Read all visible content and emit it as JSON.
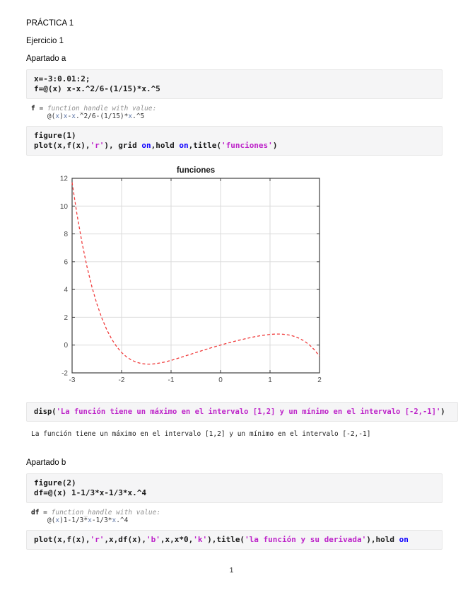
{
  "document": {
    "title": "PRÁCTICA 1",
    "subtitle": "Ejercicio 1",
    "section_a": "Apartado a",
    "section_b": "Apartado b",
    "page_number": "1"
  },
  "colors": {
    "code_background": "#f5f5f6",
    "code_border": "#e7e7e7",
    "code_text": "#1a1a1a",
    "string_purple": "#bd24c9",
    "keyword_blue": "#0e00ff",
    "output_gray_italic": "#909090",
    "plot_line_red": "#f03c3c",
    "axis_dark_gray": "#3f3f3f",
    "grid_light_gray": "#dbdbdb"
  },
  "blocks": [
    {
      "kind": "code",
      "lines": [
        [
          {
            "t": "x=-3:0.01:2;",
            "c": "c"
          }
        ],
        [
          {
            "t": "f=@(x) x-x.^2/6-(1/15)*x.^5",
            "c": "c"
          }
        ]
      ]
    },
    {
      "kind": "output",
      "lines": [
        [
          {
            "t": "f",
            "c": "ob"
          },
          {
            "t": " = ",
            "c": "o"
          },
          {
            "t": "function_handle with value:",
            "c": "g"
          }
        ],
        [
          {
            "t": "    @(",
            "c": "o"
          },
          {
            "t": "x",
            "c": "ox"
          },
          {
            "t": ")",
            "c": "o"
          },
          {
            "t": "x",
            "c": "ox"
          },
          {
            "t": "-",
            "c": "o"
          },
          {
            "t": "x",
            "c": "ox"
          },
          {
            "t": ".^2/6-(1/15)*",
            "c": "o"
          },
          {
            "t": "x",
            "c": "ox"
          },
          {
            "t": ".^5",
            "c": "o"
          }
        ]
      ]
    },
    {
      "kind": "code",
      "lines": [
        [
          {
            "t": "figure(1)",
            "c": "c"
          }
        ],
        [
          {
            "t": "plot(x,f(x),",
            "c": "c"
          },
          {
            "t": "'r'",
            "c": "s"
          },
          {
            "t": "), grid ",
            "c": "c"
          },
          {
            "t": "on",
            "c": "kw"
          },
          {
            "t": ",hold ",
            "c": "c"
          },
          {
            "t": "on",
            "c": "kw"
          },
          {
            "t": ",title(",
            "c": "c"
          },
          {
            "t": "'funciones'",
            "c": "s"
          },
          {
            "t": ")",
            "c": "c"
          }
        ]
      ]
    },
    {
      "kind": "code",
      "lines": [
        [
          {
            "t": "disp(",
            "c": "c"
          },
          {
            "t": "'La función tiene un máximo en el intervalo [1,2] y un mínimo en el intervalo [-2,-1]'",
            "c": "s"
          },
          {
            "t": ")",
            "c": "c"
          }
        ]
      ]
    },
    {
      "kind": "output",
      "lines": [
        [
          {
            "t": "La función tiene un máximo en el intervalo [1,2] y un mínimo en el intervalo [-2,-1]",
            "c": "o2"
          }
        ]
      ]
    },
    {
      "kind": "code",
      "lines": [
        [
          {
            "t": "figure(2)",
            "c": "c"
          }
        ],
        [
          {
            "t": "df=@(x) 1-1/3*x-1/3*x.^4",
            "c": "c"
          }
        ]
      ]
    },
    {
      "kind": "output",
      "lines": [
        [
          {
            "t": "df",
            "c": "ob"
          },
          {
            "t": " = ",
            "c": "o"
          },
          {
            "t": "function_handle with value:",
            "c": "g"
          }
        ],
        [
          {
            "t": "    @(",
            "c": "o"
          },
          {
            "t": "x",
            "c": "ox"
          },
          {
            "t": ")1-1/3*",
            "c": "o"
          },
          {
            "t": "x",
            "c": "ox"
          },
          {
            "t": "-1/3*",
            "c": "o"
          },
          {
            "t": "x",
            "c": "ox"
          },
          {
            "t": ".^4",
            "c": "o"
          }
        ]
      ]
    },
    {
      "kind": "code",
      "lines": [
        [
          {
            "t": "plot(x,f(x),",
            "c": "c"
          },
          {
            "t": "'r'",
            "c": "s"
          },
          {
            "t": ",x,df(x),",
            "c": "c"
          },
          {
            "t": "'b'",
            "c": "s"
          },
          {
            "t": ",x,x*0,",
            "c": "c"
          },
          {
            "t": "'k'",
            "c": "s"
          },
          {
            "t": "),title(",
            "c": "c"
          },
          {
            "t": "'la función y su derivada'",
            "c": "s"
          },
          {
            "t": "),hold ",
            "c": "c"
          },
          {
            "t": "on",
            "c": "kw"
          }
        ]
      ]
    }
  ],
  "chart_data": {
    "type": "line",
    "title": "funciones",
    "xlabel": "",
    "ylabel": "",
    "xlim": [
      -3,
      2
    ],
    "ylim": [
      -2,
      12
    ],
    "xticks": [
      -3,
      -2,
      -1,
      0,
      1,
      2
    ],
    "yticks": [
      -2,
      0,
      2,
      4,
      6,
      8,
      10,
      12
    ],
    "grid": true,
    "legend": null,
    "series": [
      {
        "name": "f(x) = x - x.^2/6 - (1/15)*x.^5",
        "color": "#f03c3c",
        "style": "dashed",
        "x": [
          -3,
          -2.9,
          -2.8,
          -2.7,
          -2.6,
          -2.5,
          -2.4,
          -2.3,
          -2.2,
          -2.1,
          -2,
          -1.9,
          -1.8,
          -1.7,
          -1.6,
          -1.5,
          -1.4,
          -1.3,
          -1.2,
          -1.1,
          -1,
          -0.9,
          -0.8,
          -0.7,
          -0.6,
          -0.5,
          -0.4,
          -0.3,
          -0.2,
          -0.1,
          0,
          0.1,
          0.2,
          0.3,
          0.4,
          0.5,
          0.6,
          0.7,
          0.8,
          0.9,
          1,
          1.1,
          1.2,
          1.3,
          1.4,
          1.5,
          1.6,
          1.7,
          1.8,
          1.9,
          2
        ],
        "y": [
          11.7,
          9.372,
          7.367,
          5.651,
          4.194,
          2.969,
          1.948,
          1.109,
          0.429,
          -0.112,
          -0.533,
          -0.851,
          -1.08,
          -1.235,
          -1.328,
          -1.369,
          -1.368,
          -1.334,
          -1.274,
          -1.194,
          -1.1,
          -0.996,
          -0.885,
          -0.77,
          -0.655,
          -0.54,
          -0.426,
          -0.315,
          -0.207,
          -0.102,
          0,
          0.098,
          0.193,
          0.285,
          0.373,
          0.456,
          0.535,
          0.607,
          0.672,
          0.726,
          0.767,
          0.791,
          0.794,
          0.771,
          0.715,
          0.619,
          0.474,
          0.272,
          0,
          -0.352,
          -0.8
        ]
      }
    ]
  }
}
